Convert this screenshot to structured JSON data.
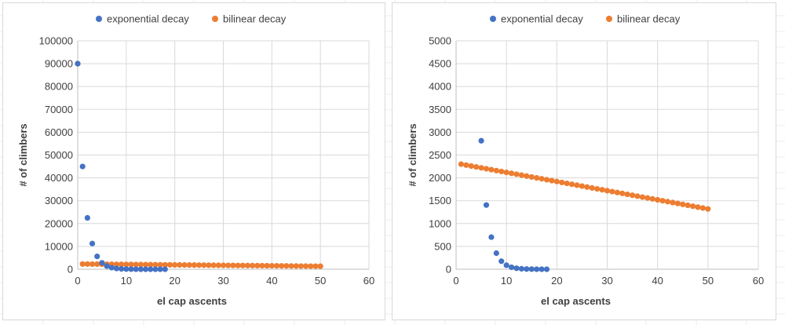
{
  "chart_data": [
    {
      "type": "scatter",
      "xlabel": "el cap ascents",
      "ylabel": "# of climbers",
      "xlim": [
        0,
        60
      ],
      "ylim": [
        0,
        100000
      ],
      "xticks": [
        0,
        10,
        20,
        30,
        40,
        50,
        60
      ],
      "yticks": [
        0,
        10000,
        20000,
        30000,
        40000,
        50000,
        60000,
        70000,
        80000,
        90000,
        100000
      ],
      "grid": true,
      "legend": "top",
      "series": [
        {
          "name": "exponential decay",
          "color": "#4472C4",
          "x": [
            0,
            1,
            2,
            3,
            4,
            5,
            6,
            7,
            8,
            9,
            10,
            11,
            12,
            13,
            14,
            15,
            16,
            17,
            18
          ],
          "y": [
            90000,
            45000,
            22500,
            11250,
            5625,
            2813,
            1406,
            703,
            352,
            176,
            88,
            44,
            22,
            11,
            5,
            3,
            1,
            1,
            0
          ]
        },
        {
          "name": "bilinear decay",
          "color": "#ED7D31",
          "x": [
            0,
            1,
            2,
            3,
            4,
            5,
            6,
            7,
            8,
            9,
            10,
            11,
            12,
            13,
            14,
            15,
            16,
            17,
            18,
            19,
            20,
            21,
            22,
            23,
            24,
            25,
            26,
            27,
            28,
            29,
            30,
            31,
            32,
            33,
            34,
            35,
            36,
            37,
            38,
            39,
            40,
            41,
            42,
            43,
            44,
            45,
            46,
            47,
            48,
            49,
            50
          ],
          "y": [
            90000,
            2300,
            2280,
            2260,
            2240,
            2220,
            2200,
            2180,
            2160,
            2140,
            2120,
            2100,
            2080,
            2060,
            2040,
            2020,
            2000,
            1980,
            1960,
            1940,
            1920,
            1900,
            1880,
            1860,
            1840,
            1820,
            1800,
            1780,
            1760,
            1740,
            1720,
            1700,
            1680,
            1660,
            1640,
            1620,
            1600,
            1580,
            1560,
            1540,
            1520,
            1500,
            1480,
            1460,
            1440,
            1420,
            1400,
            1380,
            1360,
            1340,
            1320
          ]
        }
      ]
    },
    {
      "type": "scatter",
      "xlabel": "el cap ascents",
      "ylabel": "# of climbers",
      "xlim": [
        0,
        60
      ],
      "ylim": [
        0,
        5000
      ],
      "xticks": [
        0,
        10,
        20,
        30,
        40,
        50,
        60
      ],
      "yticks": [
        0,
        500,
        1000,
        1500,
        2000,
        2500,
        3000,
        3500,
        4000,
        4500,
        5000
      ],
      "grid": true,
      "legend": "top",
      "series": [
        {
          "name": "exponential decay",
          "color": "#4472C4",
          "x": [
            5,
            6,
            7,
            8,
            9,
            10,
            11,
            12,
            13,
            14,
            15,
            16,
            17,
            18
          ],
          "y": [
            2813,
            1406,
            703,
            352,
            176,
            88,
            44,
            22,
            11,
            5,
            3,
            1,
            1,
            0
          ]
        },
        {
          "name": "bilinear decay",
          "color": "#ED7D31",
          "x": [
            1,
            2,
            3,
            4,
            5,
            6,
            7,
            8,
            9,
            10,
            11,
            12,
            13,
            14,
            15,
            16,
            17,
            18,
            19,
            20,
            21,
            22,
            23,
            24,
            25,
            26,
            27,
            28,
            29,
            30,
            31,
            32,
            33,
            34,
            35,
            36,
            37,
            38,
            39,
            40,
            41,
            42,
            43,
            44,
            45,
            46,
            47,
            48,
            49,
            50
          ],
          "y": [
            2300,
            2280,
            2260,
            2240,
            2220,
            2200,
            2180,
            2160,
            2140,
            2120,
            2100,
            2080,
            2060,
            2040,
            2020,
            2000,
            1980,
            1960,
            1940,
            1920,
            1900,
            1880,
            1860,
            1840,
            1820,
            1800,
            1780,
            1760,
            1740,
            1720,
            1700,
            1680,
            1660,
            1640,
            1620,
            1600,
            1580,
            1560,
            1540,
            1520,
            1500,
            1480,
            1460,
            1440,
            1420,
            1400,
            1380,
            1360,
            1340,
            1320
          ]
        }
      ]
    }
  ]
}
